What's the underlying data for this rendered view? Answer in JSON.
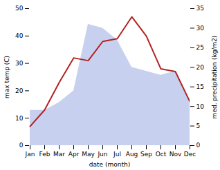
{
  "chart_data": {
    "type": "line",
    "categories": [
      "Jan",
      "Feb",
      "Mar",
      "Apr",
      "May",
      "Jun",
      "Jul",
      "Aug",
      "Sep",
      "Oct",
      "Nov",
      "Dec"
    ],
    "xlabel": "date (month)",
    "ylabel": "max temp (C)",
    "y2label": "med. precipitation (kg/m2)",
    "ylim": [
      0,
      50
    ],
    "yticks": [
      0,
      10,
      20,
      30,
      40,
      50
    ],
    "y2lim": [
      0,
      35
    ],
    "y2ticks": [
      0,
      5,
      10,
      15,
      20,
      25,
      30,
      35
    ],
    "grid": false,
    "series": [
      {
        "type": "area",
        "axis": "y2",
        "color": "#c8d0f0",
        "values": [
          9,
          9,
          11,
          14,
          31,
          30,
          27,
          20,
          19,
          18,
          19,
          11
        ]
      },
      {
        "type": "line",
        "color": "#b22222",
        "values": [
          7,
          13,
          23,
          32,
          31,
          38,
          39,
          47,
          40,
          28,
          27,
          16
        ]
      }
    ]
  }
}
